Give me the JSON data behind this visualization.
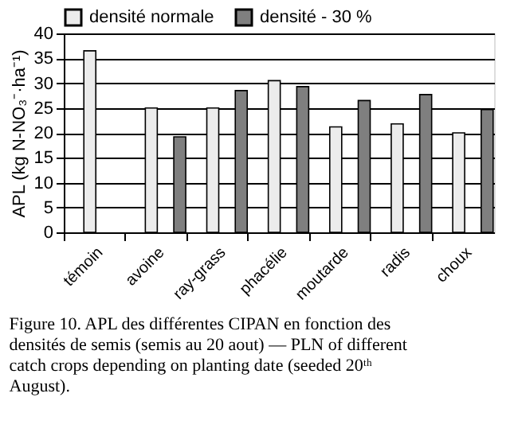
{
  "chart_data": {
    "type": "bar",
    "ylabel": "APL (kg N-NO₃⁻·ha⁻¹)",
    "categories": [
      "témoin",
      "avoine",
      "ray-grass",
      "phacélie",
      "moutarde",
      "radis",
      "choux"
    ],
    "series": [
      {
        "name": "densité normale",
        "color": "#ececec",
        "values": [
          36.5,
          25,
          25,
          30.5,
          21.2,
          21.8,
          20
        ]
      },
      {
        "name": "densité - 30 %",
        "color": "#7f7f7f",
        "values": [
          null,
          19.2,
          28.5,
          29.3,
          26.5,
          27.7,
          24.7
        ]
      }
    ],
    "ylim": [
      0,
      40
    ],
    "yticks": [
      0,
      5,
      10,
      15,
      20,
      25,
      30,
      35,
      40
    ],
    "grid": "y",
    "legend": "top",
    "annotations": [
      "Figure 10. APL des différentes CIPAN en fonction des densités de semis (semis au 20 aout) — PLN of different catch crops depending on planting date (seeded 20ᵗʰ August)."
    ]
  }
}
